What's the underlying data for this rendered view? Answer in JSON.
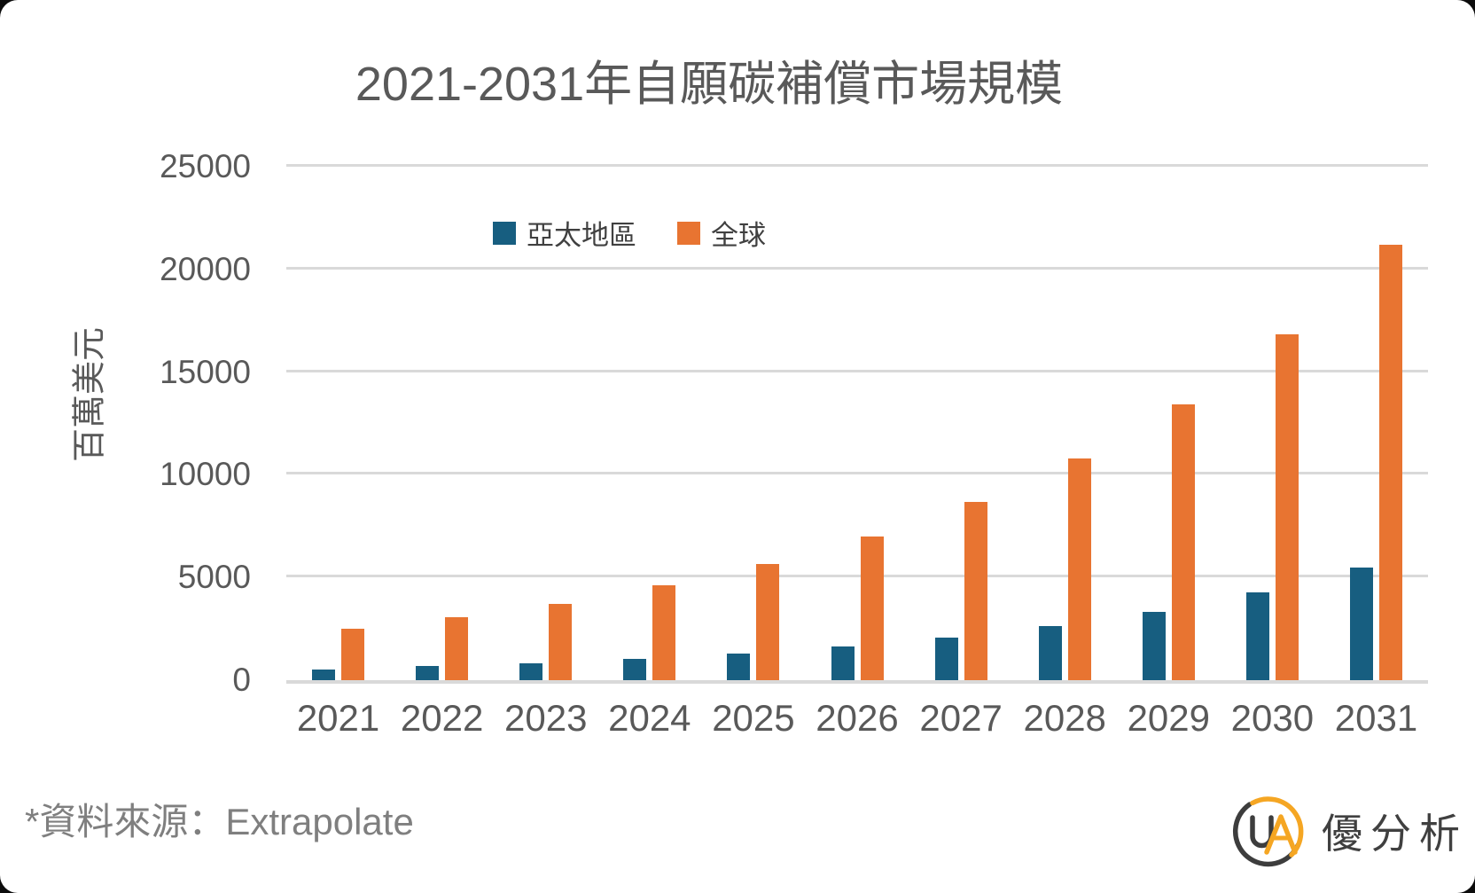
{
  "card": {
    "title": "2021-2031年自願碳補償市場規模",
    "source_note": "*資料來源：Extrapolate",
    "brand_name": "優分析"
  },
  "chart_data": {
    "type": "bar",
    "title": "2021-2031年自願碳補償市場規模",
    "xlabel": "",
    "ylabel": "百萬美元",
    "units": "百萬美元 (million USD)",
    "categories": [
      "2021",
      "2022",
      "2023",
      "2024",
      "2025",
      "2026",
      "2027",
      "2028",
      "2029",
      "2030",
      "2031"
    ],
    "series": [
      {
        "name": "亞太地區",
        "color": "#175E80",
        "values": [
          500,
          680,
          820,
          1030,
          1290,
          1640,
          2070,
          2630,
          3320,
          4270,
          5470
        ]
      },
      {
        "name": "全球",
        "color": "#E87431",
        "values": [
          2500,
          3050,
          3710,
          4610,
          5650,
          7000,
          8660,
          10780,
          13450,
          16850,
          21200
        ]
      }
    ],
    "ylim": [
      0,
      25000
    ],
    "yticks": [
      0,
      5000,
      10000,
      15000,
      20000,
      25000
    ],
    "grid": true,
    "gridline_color": "#d9d9d9",
    "legend_position": "top-center"
  },
  "colors": {
    "axis_text": "#595959",
    "legend_text": "#404040",
    "source_text": "#7f7f7f",
    "logo_orange": "#F5A623",
    "logo_dark": "#3d3d3d"
  }
}
